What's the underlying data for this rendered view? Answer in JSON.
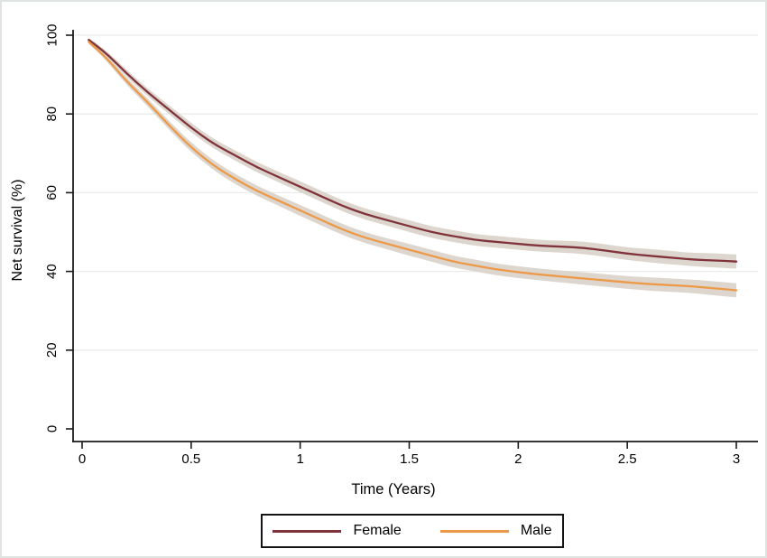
{
  "figure": {
    "background": "#ffffff",
    "border_color": "#e0e4e1",
    "axis_color": "#1a1a1a",
    "gridline_color": "#eaecec",
    "legend_border_color": "#141414"
  },
  "chart_data": {
    "type": "line",
    "title": "",
    "xlabel": "Time (Years)",
    "ylabel": "Net survival (%)",
    "xlim": [
      0,
      3
    ],
    "ylim": [
      0,
      100
    ],
    "xticks": [
      0,
      0.5,
      1,
      1.5,
      2,
      2.5,
      3
    ],
    "xtick_labels": [
      "0",
      "0.5",
      "1",
      "1.5",
      "2",
      "2.5",
      "3"
    ],
    "yticks": [
      0,
      20,
      40,
      60,
      80,
      100
    ],
    "ytick_labels": [
      "0",
      "20",
      "40",
      "60",
      "80",
      "100"
    ],
    "grid": "horizontal gridlines at 20,40,60,80,100",
    "gridline_ticks": [
      20,
      40,
      60,
      80,
      100
    ],
    "legend_position": "bottom",
    "x": [
      0.03,
      0.1,
      0.2,
      0.3,
      0.4,
      0.5,
      0.6,
      0.7,
      0.8,
      0.9,
      1.0,
      1.1,
      1.2,
      1.3,
      1.4,
      1.5,
      1.6,
      1.7,
      1.8,
      1.9,
      2.0,
      2.1,
      2.2,
      2.3,
      2.4,
      2.5,
      2.6,
      2.7,
      2.8,
      2.9,
      3.0
    ],
    "series": [
      {
        "name": "Female",
        "color": "#80333A",
        "ci_color": "#DDD6CF",
        "values": [
          98.8,
          96.0,
          90.5,
          85.5,
          81.0,
          76.5,
          72.5,
          69.5,
          66.5,
          64.0,
          61.5,
          59.0,
          56.5,
          54.5,
          53.0,
          51.5,
          50.0,
          49.0,
          48.0,
          47.5,
          47.0,
          46.5,
          46.3,
          46.0,
          45.3,
          44.5,
          44.0,
          43.5,
          43.0,
          42.8,
          42.5
        ],
        "ci_half_width": [
          0.5,
          0.7,
          0.9,
          1.0,
          1.1,
          1.2,
          1.2,
          1.3,
          1.3,
          1.3,
          1.4,
          1.4,
          1.4,
          1.4,
          1.4,
          1.5,
          1.5,
          1.5,
          1.5,
          1.5,
          1.5,
          1.5,
          1.5,
          1.6,
          1.6,
          1.6,
          1.7,
          1.7,
          1.7,
          1.8,
          1.8
        ]
      },
      {
        "name": "Male",
        "color": "#EC9A49",
        "ci_color": "#DDD6CF",
        "values": [
          98.3,
          95.0,
          88.5,
          83.0,
          77.0,
          71.5,
          67.0,
          63.5,
          60.5,
          58.0,
          55.5,
          53.0,
          50.5,
          48.5,
          47.0,
          45.5,
          44.0,
          42.5,
          41.5,
          40.5,
          39.8,
          39.2,
          38.7,
          38.2,
          37.7,
          37.2,
          36.8,
          36.5,
          36.2,
          35.7,
          35.2
        ],
        "ci_half_width": [
          0.5,
          0.7,
          0.9,
          1.0,
          1.1,
          1.2,
          1.2,
          1.3,
          1.3,
          1.3,
          1.4,
          1.4,
          1.4,
          1.4,
          1.4,
          1.5,
          1.5,
          1.5,
          1.5,
          1.5,
          1.5,
          1.5,
          1.5,
          1.6,
          1.6,
          1.6,
          1.7,
          1.7,
          1.7,
          1.8,
          1.8
        ]
      }
    ]
  }
}
